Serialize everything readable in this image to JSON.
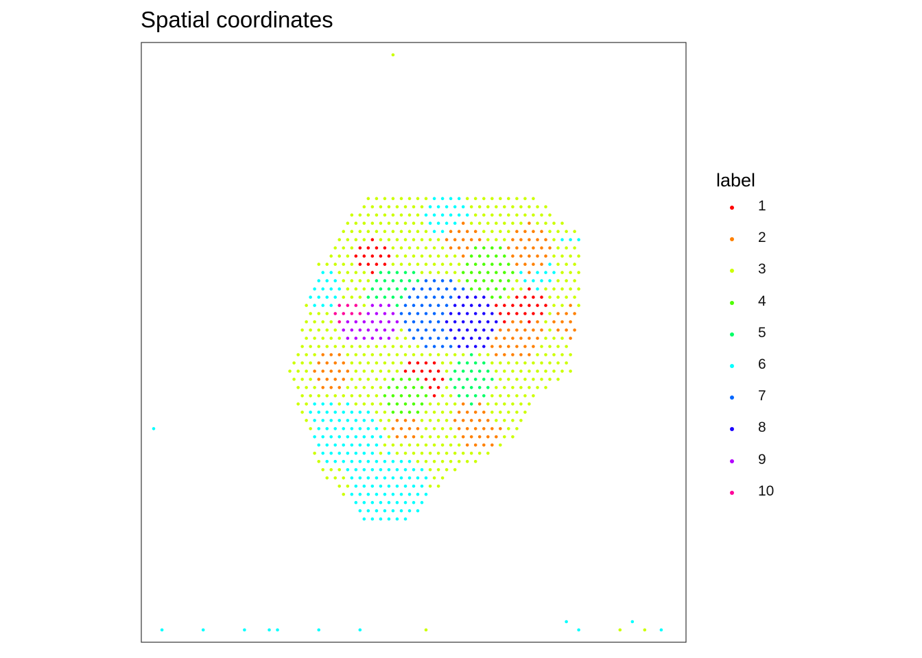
{
  "chart_data": {
    "type": "scatter",
    "title": "Spatial coordinates",
    "xlabel": "",
    "ylabel": "",
    "axes_visible": false,
    "grid": false,
    "panel_border": true,
    "legend": {
      "title": "label",
      "placement": "right",
      "entries": [
        {
          "label": "1",
          "color": "#FF0000"
        },
        {
          "label": "2",
          "color": "#FF8000"
        },
        {
          "label": "3",
          "color": "#CCFF00"
        },
        {
          "label": "4",
          "color": "#4DFF00"
        },
        {
          "label": "5",
          "color": "#00FF66"
        },
        {
          "label": "6",
          "color": "#00FFFF"
        },
        {
          "label": "7",
          "color": "#0066FF"
        },
        {
          "label": "8",
          "color": "#1A00FF"
        },
        {
          "label": "9",
          "color": "#B300FF"
        },
        {
          "label": "10",
          "color": "#FF0099"
        }
      ]
    },
    "xlim": [
      0,
      132
    ],
    "ylim": [
      0,
      146
    ],
    "spot_grid": {
      "x_step": 2,
      "y_step": 2,
      "odd_row_x_offset": 1,
      "row_range": [
        30,
        108
      ]
    },
    "tissue_outline": [
      [
        38,
        72
      ],
      [
        40,
        82
      ],
      [
        43,
        92
      ],
      [
        50,
        103
      ],
      [
        56,
        111
      ],
      [
        63,
        119
      ],
      [
        67,
        121
      ],
      [
        80,
        126
      ],
      [
        79,
        120
      ],
      [
        82,
        111
      ],
      [
        89,
        110
      ],
      [
        96,
        109
      ],
      [
        101,
        104
      ],
      [
        107,
        99
      ],
      [
        107,
        85
      ],
      [
        105,
        72
      ],
      [
        104,
        65
      ],
      [
        95,
        59
      ],
      [
        90,
        49
      ],
      [
        83,
        44
      ],
      [
        75,
        41
      ],
      [
        66,
        30
      ],
      [
        54,
        30
      ],
      [
        44,
        41
      ],
      [
        38,
        56
      ],
      [
        36,
        66
      ]
    ],
    "regions": [
      {
        "label": "6",
        "center": [
          44,
          86
        ],
        "radius": 5
      },
      {
        "label": "2",
        "center": [
          44,
          100
        ],
        "radius": 4
      },
      {
        "label": "3",
        "center": [
          52,
          103
        ],
        "radius": 5
      },
      {
        "label": "3",
        "center": [
          64,
          112
        ],
        "radius": 7
      },
      {
        "label": "6",
        "center": [
          72,
          117
        ],
        "radius": 8
      },
      {
        "label": "6",
        "center": [
          74,
          104
        ],
        "radius": 5
      },
      {
        "label": "3",
        "center": [
          84,
          107
        ],
        "radius": 5
      },
      {
        "label": "2",
        "center": [
          78,
          98
        ],
        "radius": 4
      },
      {
        "label": "3",
        "center": [
          100,
          103
        ],
        "radius": 4
      },
      {
        "label": "6",
        "center": [
          104,
          98
        ],
        "radius": 2
      },
      {
        "label": "6",
        "center": [
          96,
          90
        ],
        "radius": 4
      },
      {
        "label": "2",
        "center": [
          94,
          96
        ],
        "radius": 6
      },
      {
        "label": "2",
        "center": [
          90,
          76
        ],
        "radius": 8
      },
      {
        "label": "1",
        "center": [
          94,
          82
        ],
        "radius": 4
      },
      {
        "label": "2",
        "center": [
          104,
          78
        ],
        "radius": 4
      },
      {
        "label": "3",
        "center": [
          106,
          88
        ],
        "radius": 4
      },
      {
        "label": "2",
        "center": [
          46,
          66
        ],
        "radius": 5
      },
      {
        "label": "6",
        "center": [
          50,
          50
        ],
        "radius": 8
      },
      {
        "label": "6",
        "center": [
          44,
          56
        ],
        "radius": 4
      },
      {
        "label": "6",
        "center": [
          60,
          36
        ],
        "radius": 10
      },
      {
        "label": "2",
        "center": [
          64,
          52
        ],
        "radius": 4
      },
      {
        "label": "3",
        "center": [
          76,
          50
        ],
        "radius": 5
      },
      {
        "label": "2",
        "center": [
          82,
          54
        ],
        "radius": 7
      },
      {
        "label": "3",
        "center": [
          90,
          58
        ],
        "radius": 6
      },
      {
        "label": "1",
        "center": [
          56,
          94
        ],
        "radius": 4
      },
      {
        "label": "1",
        "center": [
          68,
          64
        ],
        "radius": 5
      },
      {
        "label": "1",
        "center": [
          86,
          80
        ],
        "radius": 3
      },
      {
        "label": "5",
        "center": [
          62,
          84
        ],
        "radius": 8
      },
      {
        "label": "4",
        "center": [
          84,
          90
        ],
        "radius": 7
      },
      {
        "label": "4",
        "center": [
          64,
          60
        ],
        "radius": 5
      },
      {
        "label": "5",
        "center": [
          80,
          64
        ],
        "radius": 6
      },
      {
        "label": "7",
        "center": [
          72,
          80
        ],
        "radius": 9
      },
      {
        "label": "8",
        "center": [
          80,
          78
        ],
        "radius": 7
      },
      {
        "label": "9",
        "center": [
          58,
          78
        ],
        "radius": 5
      },
      {
        "label": "10",
        "center": [
          50,
          80
        ],
        "radius": 3
      },
      {
        "label": "9",
        "center": [
          52,
          76
        ],
        "radius": 3
      }
    ],
    "background_label": "3",
    "outliers": [
      {
        "x": 61,
        "y": 143,
        "label": "3"
      },
      {
        "x": 3,
        "y": 52,
        "label": "6"
      },
      {
        "x": 5,
        "y": 3,
        "label": "6"
      },
      {
        "x": 15,
        "y": 3,
        "label": "6"
      },
      {
        "x": 25,
        "y": 3,
        "label": "6"
      },
      {
        "x": 31,
        "y": 3,
        "label": "6"
      },
      {
        "x": 33,
        "y": 3,
        "label": "6"
      },
      {
        "x": 43,
        "y": 3,
        "label": "6"
      },
      {
        "x": 53,
        "y": 3,
        "label": "6"
      },
      {
        "x": 69,
        "y": 3,
        "label": "3"
      },
      {
        "x": 103,
        "y": 5,
        "label": "6"
      },
      {
        "x": 106,
        "y": 3,
        "label": "6"
      },
      {
        "x": 116,
        "y": 3,
        "label": "3"
      },
      {
        "x": 119,
        "y": 5,
        "label": "6"
      },
      {
        "x": 122,
        "y": 3,
        "label": "3"
      },
      {
        "x": 126,
        "y": 3,
        "label": "6"
      }
    ]
  }
}
